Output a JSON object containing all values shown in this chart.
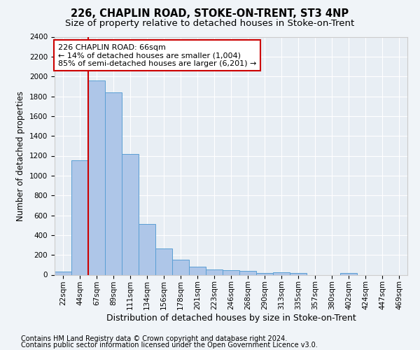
{
  "title1": "226, CHAPLIN ROAD, STOKE-ON-TRENT, ST3 4NP",
  "title2": "Size of property relative to detached houses in Stoke-on-Trent",
  "xlabel": "Distribution of detached houses by size in Stoke-on-Trent",
  "ylabel": "Number of detached properties",
  "categories": [
    "22sqm",
    "44sqm",
    "67sqm",
    "89sqm",
    "111sqm",
    "134sqm",
    "156sqm",
    "178sqm",
    "201sqm",
    "223sqm",
    "246sqm",
    "268sqm",
    "290sqm",
    "313sqm",
    "335sqm",
    "357sqm",
    "380sqm",
    "402sqm",
    "424sqm",
    "447sqm",
    "469sqm"
  ],
  "values": [
    30,
    1155,
    1960,
    1840,
    1215,
    515,
    265,
    155,
    80,
    50,
    45,
    40,
    20,
    25,
    15,
    0,
    0,
    20,
    0,
    0,
    0
  ],
  "bar_color": "#aec6e8",
  "bar_edge_color": "#5a9fd4",
  "annotation_text": "226 CHAPLIN ROAD: 66sqm\n← 14% of detached houses are smaller (1,004)\n85% of semi-detached houses are larger (6,201) →",
  "annotation_box_color": "#ffffff",
  "annotation_box_edge": "#cc0000",
  "vline_color": "#cc0000",
  "vline_x": 1.5,
  "ylim": [
    0,
    2400
  ],
  "yticks": [
    0,
    200,
    400,
    600,
    800,
    1000,
    1200,
    1400,
    1600,
    1800,
    2000,
    2200,
    2400
  ],
  "bg_color": "#f0f4f8",
  "plot_bg_color": "#e8eef4",
  "footer1": "Contains HM Land Registry data © Crown copyright and database right 2024.",
  "footer2": "Contains public sector information licensed under the Open Government Licence v3.0.",
  "title1_fontsize": 10.5,
  "title2_fontsize": 9.5,
  "xlabel_fontsize": 9,
  "ylabel_fontsize": 8.5,
  "tick_fontsize": 7.5,
  "annotation_fontsize": 8,
  "footer_fontsize": 7
}
